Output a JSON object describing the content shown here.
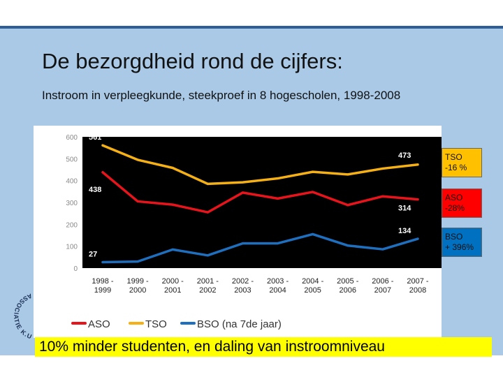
{
  "slide": {
    "title": "De bezorgdheid rond de cijfers:",
    "subtitle": "Instroom in verpleegkunde, steekproef in 8 hogescholen, 1998-2008",
    "caption": "10%  minder studenten, en daling van instroomniveau"
  },
  "callouts": [
    {
      "line1": "TSO",
      "line2": "-16 %",
      "color": "#ffc000"
    },
    {
      "line1": "ASO",
      "line2": "-28%",
      "color": "#ff0000"
    },
    {
      "line1": "BSO",
      "line2": "+ 396%",
      "color": "#0070c0"
    }
  ],
  "seal": {
    "text": "ASSOCIATIE K.U.LEUVEN"
  },
  "chart_data": {
    "type": "line",
    "categories": [
      [
        "1998 -",
        "1999"
      ],
      [
        "1999 -",
        "2000"
      ],
      [
        "2000 -",
        "2001"
      ],
      [
        "2001 -",
        "2002"
      ],
      [
        "2002 -",
        "2003"
      ],
      [
        "2003 -",
        "2004"
      ],
      [
        "2004 -",
        "2005"
      ],
      [
        "2005 -",
        "2006"
      ],
      [
        "2006 -",
        "2007"
      ],
      [
        "2007 -",
        "2008"
      ]
    ],
    "ylim": [
      0,
      600
    ],
    "yticks": [
      "0",
      "100",
      "200",
      "300",
      "400",
      "500",
      "600"
    ],
    "series": [
      {
        "name": "ASO",
        "color": "#e8141b",
        "values": [
          438,
          305,
          290,
          255,
          345,
          318,
          348,
          288,
          328,
          314
        ]
      },
      {
        "name": "TSO",
        "color": "#f5b015",
        "values": [
          561,
          495,
          458,
          385,
          392,
          410,
          440,
          428,
          455,
          473
        ]
      },
      {
        "name": "BSO (na 7de jaar)",
        "color": "#1f6fbf",
        "values": [
          27,
          30,
          85,
          58,
          113,
          113,
          155,
          103,
          86,
          134
        ]
      }
    ],
    "data_labels": [
      {
        "text": "561",
        "series": 1,
        "index": 0
      },
      {
        "text": "438",
        "series": 0,
        "index": 0
      },
      {
        "text": "27",
        "series": 2,
        "index": 0
      },
      {
        "text": "473",
        "series": 1,
        "index": 9
      },
      {
        "text": "314",
        "series": 0,
        "index": 9
      },
      {
        "text": "134",
        "series": 2,
        "index": 9
      }
    ],
    "legend_position": "bottom"
  }
}
